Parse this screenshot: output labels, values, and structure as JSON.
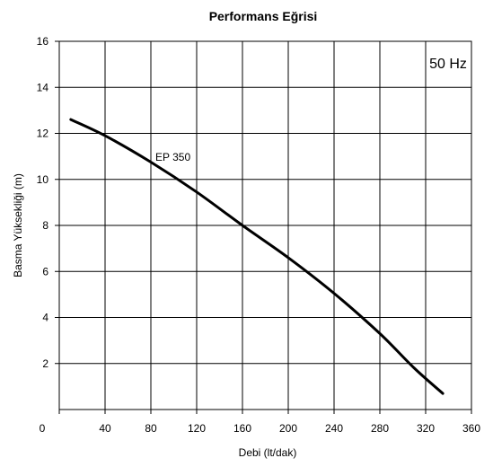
{
  "chart_data": {
    "type": "line",
    "title": "Performans Eğrisi",
    "xlabel": "Debi (lt/dak)",
    "ylabel": "Basma Yüksekliği (m)",
    "xlim": [
      0,
      360
    ],
    "ylim": [
      0,
      16
    ],
    "x_ticks": [
      0,
      40,
      80,
      120,
      160,
      200,
      240,
      280,
      320,
      360
    ],
    "y_ticks": [
      2,
      4,
      6,
      8,
      10,
      12,
      14,
      16
    ],
    "grid": true,
    "annotation": "50 Hz",
    "series": [
      {
        "name": "EP 350",
        "color": "#000000",
        "points": [
          [
            10,
            12.6
          ],
          [
            40,
            11.9
          ],
          [
            80,
            10.75
          ],
          [
            120,
            9.45
          ],
          [
            160,
            8.0
          ],
          [
            200,
            6.6
          ],
          [
            240,
            5.05
          ],
          [
            280,
            3.3
          ],
          [
            310,
            1.8
          ],
          [
            335,
            0.7
          ]
        ]
      }
    ]
  }
}
